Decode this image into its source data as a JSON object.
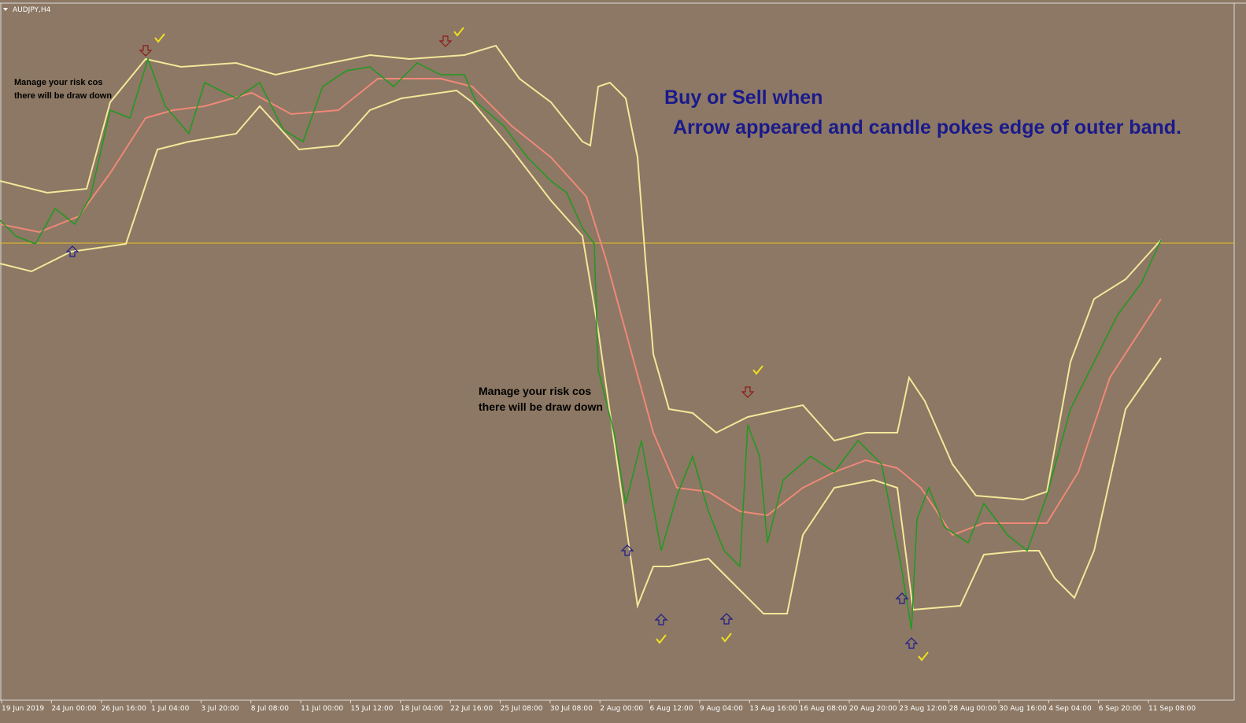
{
  "header": {
    "symbol": "AUDJPY,H4"
  },
  "annotations": {
    "risk_note_1": [
      "Manage your risk cos",
      "there will be draw down"
    ],
    "risk_note_2": [
      "Manage your risk cos",
      "there will be draw down"
    ],
    "rule": [
      "Buy or Sell when",
      "Arrow appeared and candle pokes edge of outer band."
    ]
  },
  "time_axis": [
    "19 Jun 2019",
    "24 Jun 00:00",
    "26 Jun 16:00",
    "1 Jul 04:00",
    "3 Jul 20:00",
    "8 Jul 08:00",
    "11 Jul 00:00",
    "15 Jul 12:00",
    "18 Jul 04:00",
    "22 Jul 16:00",
    "25 Jul 08:00",
    "30 Jul 08:00",
    "2 Aug 00:00",
    "6 Aug 12:00",
    "9 Aug 04:00",
    "13 Aug 16:00",
    "16 Aug 08:00",
    "20 Aug 20:00",
    "23 Aug 12:00",
    "28 Aug 00:00",
    "30 Aug 16:00",
    "4 Sep 04:00",
    "6 Sep 20:00",
    "11 Sep 08:00"
  ]
}
